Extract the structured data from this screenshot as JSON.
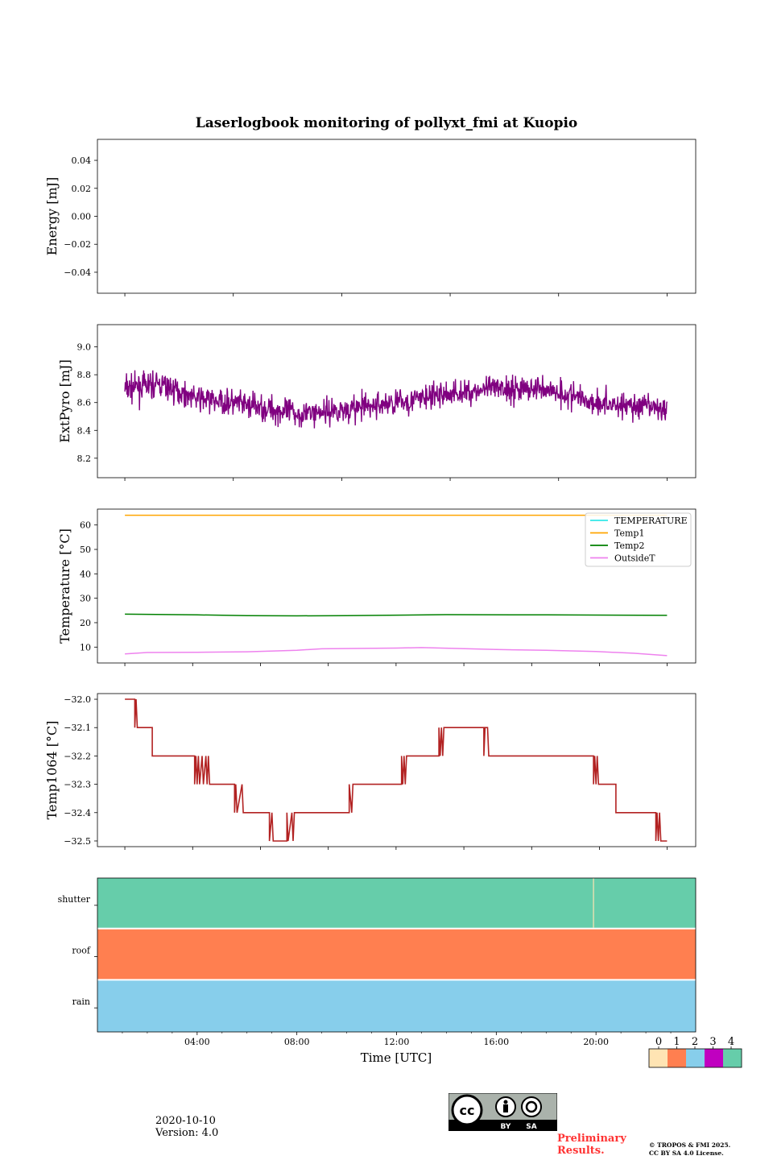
{
  "figure": {
    "title": "Laserlogbook monitoring of pollyxt_fmi at Kuopio",
    "xlabel": "Time [UTC]",
    "date": "2020-10-10",
    "version": "Version: 4.0",
    "preliminary": [
      "Preliminary",
      "Results."
    ],
    "copyright": [
      "© TROPOS & FMI 2025.",
      "CC BY SA 4.0 License."
    ],
    "license_badge": {
      "by": "BY",
      "sa": "SA"
    }
  },
  "chart_data": [
    {
      "type": "line",
      "name": "energy",
      "ylabel": "Energy [mJ]",
      "ylim": [
        -0.055,
        0.055
      ],
      "yticks": [
        0.04,
        0.02,
        0.0,
        -0.02,
        -0.04
      ],
      "ytick_labels": [
        "0.04",
        "0.02",
        "0.00",
        "−0.02",
        "−0.04"
      ],
      "xlim": [
        0.0,
        24.0
      ],
      "xticks": [
        1.1,
        5.45,
        9.8,
        14.15,
        18.5,
        22.85
      ],
      "series": []
    },
    {
      "type": "line",
      "name": "extpyro",
      "ylabel": "ExtPyro [mJ]",
      "ylim": [
        8.06,
        9.16
      ],
      "yticks": [
        9.0,
        8.8,
        8.6,
        8.4,
        8.2
      ],
      "ytick_labels": [
        "9.0",
        "8.8",
        "8.6",
        "8.4",
        "8.2"
      ],
      "xlim": [
        0.0,
        24.0
      ],
      "xticks": [
        1.1,
        5.45,
        9.8,
        14.15,
        18.5,
        22.85
      ],
      "series": [
        {
          "name": "ExtPyro",
          "color": "#800080",
          "x_range": [
            1.1,
            22.85
          ],
          "points": 1300,
          "noise": 0.12,
          "seed": 7,
          "trend": [
            [
              1.1,
              8.7
            ],
            [
              2.5,
              8.73
            ],
            [
              4,
              8.63
            ],
            [
              6,
              8.58
            ],
            [
              8,
              8.52
            ],
            [
              10,
              8.55
            ],
            [
              12,
              8.6
            ],
            [
              14,
              8.66
            ],
            [
              16,
              8.7
            ],
            [
              18,
              8.7
            ],
            [
              20,
              8.6
            ],
            [
              22.85,
              8.55
            ]
          ]
        }
      ]
    },
    {
      "type": "line",
      "name": "temperature",
      "ylabel": "Temperature [°C]",
      "ylim": [
        3.5,
        66.5
      ],
      "yticks": [
        60,
        50,
        40,
        30,
        20,
        10
      ],
      "ytick_labels": [
        "60",
        "50",
        "40",
        "30",
        "20",
        "10"
      ],
      "xlim": [
        0.0,
        24.0
      ],
      "xticks": [
        1.1,
        3.82,
        6.54,
        9.26,
        11.98,
        14.7,
        17.42,
        20.14,
        22.85
      ],
      "legend": {
        "location": "top-right",
        "entries": [
          "TEMPERATURE",
          "Temp1",
          "Temp2",
          "OutsideT"
        ]
      },
      "series": [
        {
          "name": "TEMPERATURE",
          "color": "#33e8e8",
          "points": []
        },
        {
          "name": "Temp1",
          "color": "#ffa500",
          "points": [
            [
              1.1,
              64
            ],
            [
              22.85,
              64
            ]
          ]
        },
        {
          "name": "Temp2",
          "color": "#008000",
          "points": [
            [
              1.1,
              23.5
            ],
            [
              4,
              23.2
            ],
            [
              6,
              22.9
            ],
            [
              8,
              22.8
            ],
            [
              10,
              22.9
            ],
            [
              14,
              23.3
            ],
            [
              18,
              23.2
            ],
            [
              22.85,
              23.0
            ]
          ]
        },
        {
          "name": "OutsideT",
          "color": "#ee82ee",
          "points": [
            [
              1.1,
              7.2
            ],
            [
              2,
              7.8
            ],
            [
              4,
              7.9
            ],
            [
              6,
              8.1
            ],
            [
              8,
              8.7
            ],
            [
              9,
              9.3
            ],
            [
              12,
              9.6
            ],
            [
              13,
              9.8
            ],
            [
              16,
              9.0
            ],
            [
              18,
              8.7
            ],
            [
              20,
              8.2
            ],
            [
              21.5,
              7.5
            ],
            [
              22.85,
              6.5
            ]
          ]
        }
      ]
    },
    {
      "type": "line",
      "name": "temp1064",
      "ylabel": "Temp1064 [°C]",
      "ylim": [
        -32.52,
        -31.98
      ],
      "yticks": [
        -32.0,
        -32.1,
        -32.2,
        -32.3,
        -32.4,
        -32.5
      ],
      "ytick_labels": [
        "−32.0",
        "−32.1",
        "−32.2",
        "−32.3",
        "−32.4",
        "−32.5"
      ],
      "xlim": [
        0.0,
        24.0
      ],
      "xticks": [
        1.1,
        3.82,
        6.54,
        9.26,
        11.98,
        14.7,
        17.42,
        20.14,
        22.85
      ],
      "series": [
        {
          "name": "Temp1064",
          "color": "#b22222",
          "points": [
            [
              1.1,
              -32.0
            ],
            [
              1.5,
              -32.0
            ],
            [
              1.5,
              -32.1
            ],
            [
              1.55,
              -32.0
            ],
            [
              1.6,
              -32.1
            ],
            [
              2.2,
              -32.1
            ],
            [
              2.2,
              -32.2
            ],
            [
              3.9,
              -32.2
            ],
            [
              3.9,
              -32.3
            ],
            [
              3.95,
              -32.2
            ],
            [
              4.0,
              -32.3
            ],
            [
              4.05,
              -32.2
            ],
            [
              4.1,
              -32.3
            ],
            [
              4.2,
              -32.2
            ],
            [
              4.25,
              -32.3
            ],
            [
              4.35,
              -32.2
            ],
            [
              4.4,
              -32.3
            ],
            [
              4.45,
              -32.2
            ],
            [
              4.5,
              -32.3
            ],
            [
              5.5,
              -32.3
            ],
            [
              5.5,
              -32.4
            ],
            [
              5.55,
              -32.3
            ],
            [
              5.6,
              -32.4
            ],
            [
              5.8,
              -32.3
            ],
            [
              5.85,
              -32.4
            ],
            [
              6.9,
              -32.4
            ],
            [
              6.9,
              -32.5
            ],
            [
              7.0,
              -32.4
            ],
            [
              7.05,
              -32.5
            ],
            [
              7.6,
              -32.5
            ],
            [
              7.6,
              -32.4
            ],
            [
              7.65,
              -32.5
            ],
            [
              7.8,
              -32.4
            ],
            [
              7.85,
              -32.5
            ],
            [
              7.9,
              -32.4
            ],
            [
              10.1,
              -32.4
            ],
            [
              10.1,
              -32.3
            ],
            [
              10.2,
              -32.4
            ],
            [
              10.25,
              -32.3
            ],
            [
              12.2,
              -32.3
            ],
            [
              12.2,
              -32.2
            ],
            [
              12.25,
              -32.3
            ],
            [
              12.3,
              -32.2
            ],
            [
              12.35,
              -32.3
            ],
            [
              12.4,
              -32.2
            ],
            [
              13.7,
              -32.2
            ],
            [
              13.7,
              -32.1
            ],
            [
              13.75,
              -32.2
            ],
            [
              13.8,
              -32.1
            ],
            [
              13.85,
              -32.2
            ],
            [
              13.9,
              -32.1
            ],
            [
              15.5,
              -32.1
            ],
            [
              15.5,
              -32.2
            ],
            [
              15.55,
              -32.1
            ],
            [
              15.65,
              -32.1
            ],
            [
              15.7,
              -32.2
            ],
            [
              19.9,
              -32.2
            ],
            [
              19.9,
              -32.3
            ],
            [
              19.95,
              -32.2
            ],
            [
              20.0,
              -32.3
            ],
            [
              20.05,
              -32.2
            ],
            [
              20.1,
              -32.3
            ],
            [
              20.8,
              -32.3
            ],
            [
              20.8,
              -32.4
            ],
            [
              22.4,
              -32.4
            ],
            [
              22.4,
              -32.5
            ],
            [
              22.45,
              -32.4
            ],
            [
              22.5,
              -32.5
            ],
            [
              22.55,
              -32.4
            ],
            [
              22.6,
              -32.5
            ],
            [
              22.85,
              -32.5
            ]
          ]
        }
      ]
    },
    {
      "type": "heatmap",
      "name": "status",
      "rows": [
        "shutter",
        "roof",
        "rain"
      ],
      "values": [
        4,
        1,
        2
      ],
      "shutter_break_x": 19.9,
      "xlim": [
        0.0,
        24.0
      ],
      "xticks": [
        4,
        8,
        12,
        16,
        20
      ],
      "xtick_labels": [
        "04:00",
        "08:00",
        "12:00",
        "16:00",
        "20:00"
      ],
      "colorbar": {
        "ticks": [
          "0",
          "1",
          "2",
          "3",
          "4"
        ],
        "colors": [
          "#ffe4b3",
          "#ff7f50",
          "#87ceeb",
          "#c000c0",
          "#66cdaa"
        ]
      }
    }
  ]
}
